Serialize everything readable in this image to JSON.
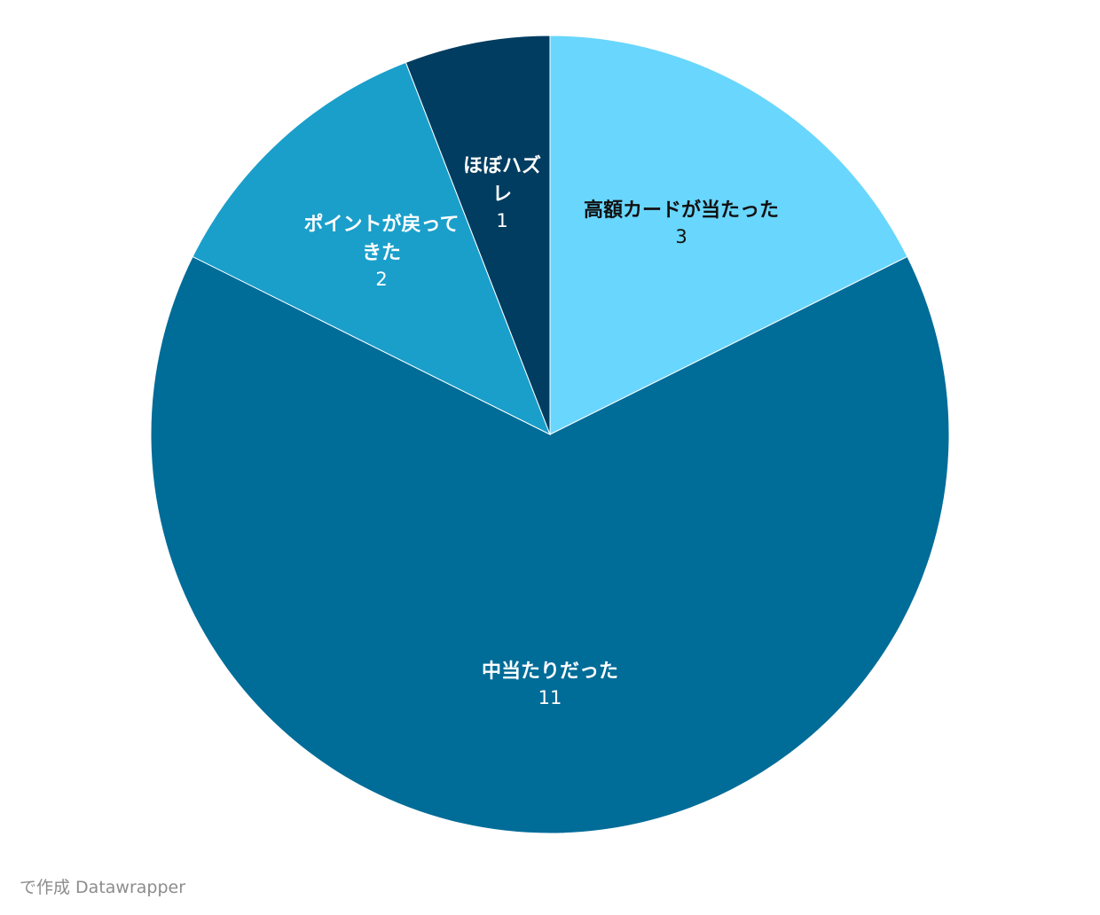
{
  "chart_data": {
    "type": "pie",
    "title": "",
    "slices": [
      {
        "label": "高額カードが当たった",
        "label_lines": [
          "高額カードが当たった"
        ],
        "value": 3,
        "color": "#69d6fd",
        "text_color": "#111111"
      },
      {
        "label": "中当たりだった",
        "label_lines": [
          "中当たりだった"
        ],
        "value": 11,
        "color": "#006c98",
        "text_color": "#ffffff"
      },
      {
        "label": "ポイントが戻ってきた",
        "label_lines": [
          "ポイントが戻って",
          "きた"
        ],
        "value": 2,
        "color": "#1a9fcb",
        "text_color": "#ffffff"
      },
      {
        "label": "ほぼハズレ",
        "label_lines": [
          "ほぼハズ",
          "レ"
        ],
        "value": 1,
        "color": "#003d61",
        "text_color": "#ffffff"
      }
    ],
    "start_angle": "12 o'clock",
    "direction": "clockwise",
    "legend": "none"
  },
  "footer": {
    "credit": "で作成 Datawrapper"
  }
}
